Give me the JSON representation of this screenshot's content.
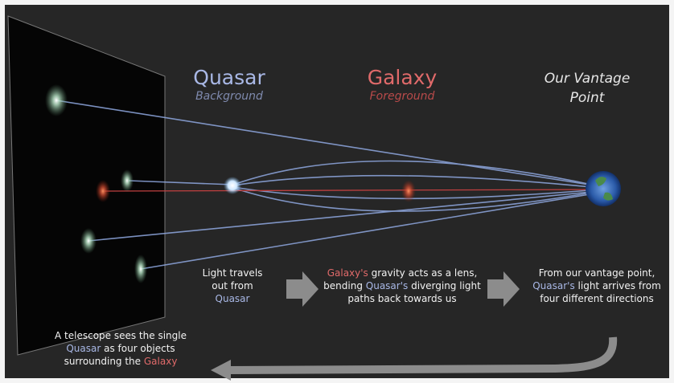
{
  "labels": {
    "quasar": {
      "title": "Quasar",
      "subtitle": "Background"
    },
    "galaxy": {
      "title": "Galaxy",
      "subtitle": "Foreground"
    },
    "vantage": {
      "title": "Our Vantage Point"
    }
  },
  "steps": [
    {
      "parts": [
        "Light travels out from ",
        "Quasar"
      ]
    },
    {
      "parts": [
        "Galaxy's",
        " gravity acts as a lens, bending ",
        "Quasar's",
        " diverging light paths back towards us"
      ]
    },
    {
      "parts": [
        "From our vantage point, ",
        "Quasar's",
        " light arrives from four different directions"
      ]
    }
  ],
  "telescope": {
    "parts": [
      "A telescope sees the single ",
      "Quasar",
      " as four objects surrounding the ",
      "Galaxy"
    ]
  }
}
